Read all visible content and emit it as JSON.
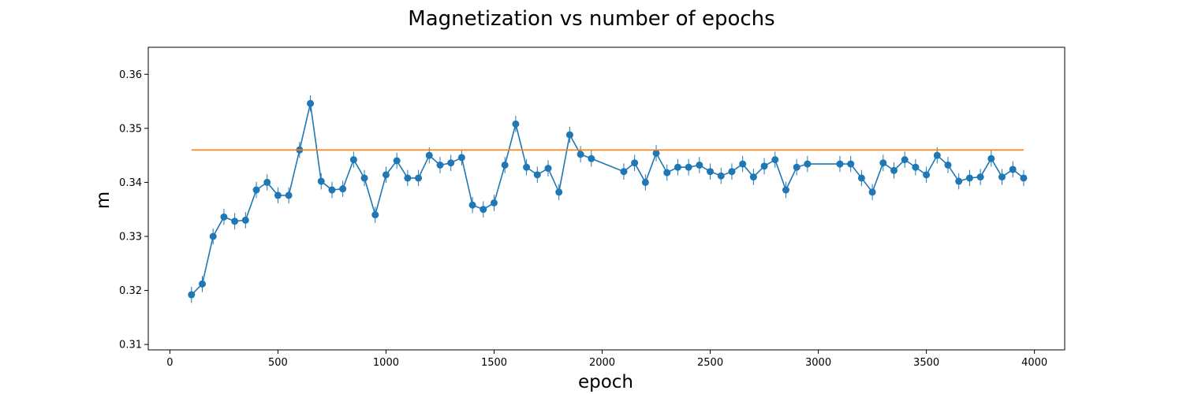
{
  "chart_data": {
    "type": "line",
    "title": "Magnetization vs number of epochs",
    "xlabel": "epoch",
    "ylabel": "m",
    "xlim": [
      -100,
      4140
    ],
    "ylim": [
      0.309,
      0.365
    ],
    "xticks": [
      0,
      500,
      1000,
      1500,
      2000,
      2500,
      3000,
      3500,
      4000
    ],
    "yticks": [
      0.31,
      0.32,
      0.33,
      0.34,
      0.35,
      0.36
    ],
    "grid": false,
    "legend": "none",
    "series": [
      {
        "color": "#1f77b4",
        "marker": "circle",
        "error_bars": true,
        "x": [
          100,
          150,
          200,
          250,
          300,
          350,
          400,
          450,
          500,
          550,
          600,
          650,
          700,
          750,
          800,
          850,
          900,
          950,
          1000,
          1050,
          1100,
          1150,
          1200,
          1250,
          1300,
          1350,
          1400,
          1450,
          1500,
          1550,
          1600,
          1650,
          1700,
          1750,
          1800,
          1850,
          1900,
          1950,
          2100,
          2150,
          2200,
          2250,
          2300,
          2350,
          2400,
          2450,
          2500,
          2550,
          2600,
          2650,
          2700,
          2750,
          2800,
          2850,
          2900,
          2950,
          3100,
          3150,
          3200,
          3250,
          3300,
          3350,
          3400,
          3450,
          3500,
          3550,
          3600,
          3650,
          3700,
          3750,
          3800,
          3850,
          3900,
          3950
        ],
        "y": [
          0.3192,
          0.3212,
          0.33,
          0.3336,
          0.3328,
          0.333,
          0.3386,
          0.34,
          0.3376,
          0.3376,
          0.346,
          0.3546,
          0.3402,
          0.3386,
          0.3388,
          0.3442,
          0.3408,
          0.334,
          0.3414,
          0.344,
          0.3408,
          0.3408,
          0.345,
          0.3432,
          0.3436,
          0.3446,
          0.3358,
          0.335,
          0.3362,
          0.3432,
          0.3508,
          0.3428,
          0.3414,
          0.3426,
          0.3382,
          0.3488,
          0.3452,
          0.3444,
          0.342,
          0.3436,
          0.34,
          0.3454,
          0.3418,
          0.3428,
          0.3428,
          0.3432,
          0.342,
          0.3412,
          0.342,
          0.3434,
          0.341,
          0.343,
          0.3442,
          0.3386,
          0.3428,
          0.3434,
          0.3434,
          0.3434,
          0.3408,
          0.3382,
          0.3436,
          0.3422,
          0.3442,
          0.3428,
          0.3414,
          0.345,
          0.3432,
          0.3402,
          0.3408,
          0.341,
          0.3444,
          0.341,
          0.3424,
          0.3408
        ],
        "error": 0.0015
      },
      {
        "color": "#ff7f0e",
        "marker": "none",
        "x": [
          100,
          3950
        ],
        "y": [
          0.346,
          0.346
        ]
      }
    ]
  }
}
